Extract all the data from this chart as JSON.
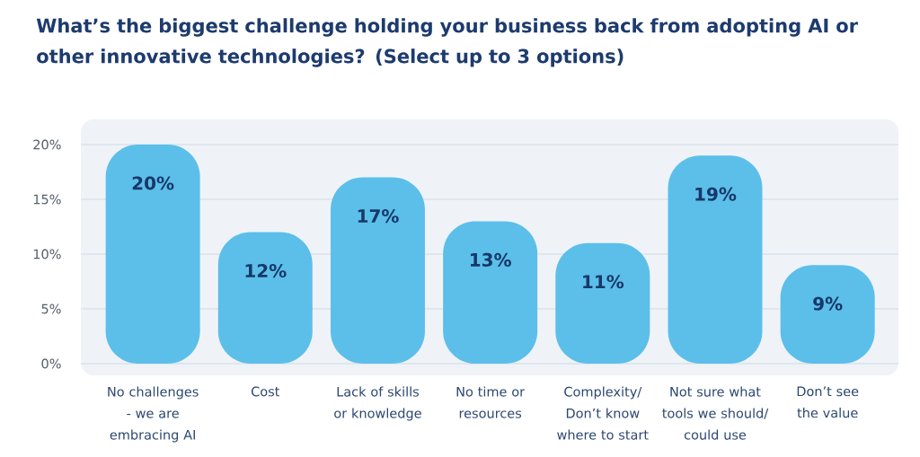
{
  "chart_data": {
    "type": "bar",
    "title": "What’s the biggest challenge holding your business back from adopting AI or other innovative technologies? (Select up to 3 options)",
    "categories": [
      "No challenges - we are embracing AI",
      "Cost",
      "Lack of skills or knowledge",
      "No time or resources",
      "Complexity/ Don’t know where to start",
      "Not sure what tools we should/ could use",
      "Don’t see the value"
    ],
    "values": [
      20,
      12,
      17,
      13,
      11,
      19,
      9
    ],
    "value_labels": [
      "20%",
      "12%",
      "17%",
      "13%",
      "11%",
      "19%",
      "9%"
    ],
    "color": "#5cbfe9",
    "ylim": [
      0,
      20
    ],
    "yticks": [
      {
        "value": 0,
        "label": "0%"
      },
      {
        "value": 5,
        "label": "5%"
      },
      {
        "value": 10,
        "label": "10%"
      },
      {
        "value": 15,
        "label": "15%"
      },
      {
        "value": 20,
        "label": "20%"
      }
    ],
    "grid": "y"
  }
}
